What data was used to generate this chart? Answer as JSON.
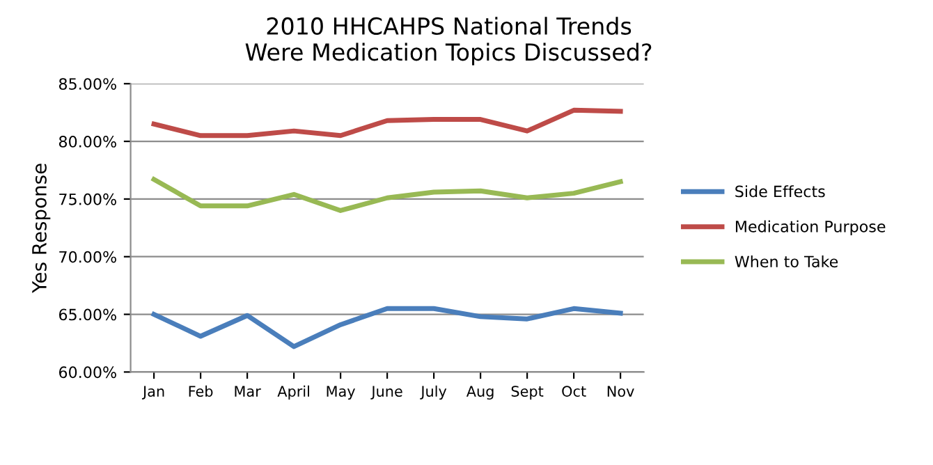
{
  "chart_data": {
    "type": "line",
    "title": "2010 HHCAHPS National Trends\nWere Medication Topics Discussed?",
    "ylabel": "Yes Response",
    "categories": [
      "Jan",
      "Feb",
      "Mar",
      "April",
      "May",
      "June",
      "July",
      "Aug",
      "Sept",
      "Oct",
      "Nov"
    ],
    "series": [
      {
        "name": "Side Effects",
        "color": "#4a7ebb",
        "values": [
          65.0,
          63.1,
          64.9,
          62.2,
          64.1,
          65.5,
          65.5,
          64.8,
          64.6,
          65.5,
          65.1
        ]
      },
      {
        "name": "Medication Purpose",
        "color": "#be4b48",
        "values": [
          81.5,
          80.5,
          80.5,
          80.9,
          80.5,
          81.8,
          81.9,
          81.9,
          80.9,
          82.7,
          82.6
        ]
      },
      {
        "name": "When to Take",
        "color": "#98b954",
        "values": [
          76.7,
          74.4,
          74.4,
          75.4,
          74.0,
          75.1,
          75.6,
          75.7,
          75.1,
          75.5,
          76.5
        ]
      }
    ],
    "ylim": [
      60,
      85
    ],
    "yticks": [
      {
        "value": 60,
        "label": "60.00%"
      },
      {
        "value": 65,
        "label": "65.00%"
      },
      {
        "value": 70,
        "label": "70.00%"
      },
      {
        "value": 75,
        "label": "75.00%"
      },
      {
        "value": 80,
        "label": "80.00%"
      },
      {
        "value": 85,
        "label": "85.00%"
      }
    ],
    "grid": "y",
    "legend": "right",
    "marker": "none",
    "line_style": "solid"
  }
}
